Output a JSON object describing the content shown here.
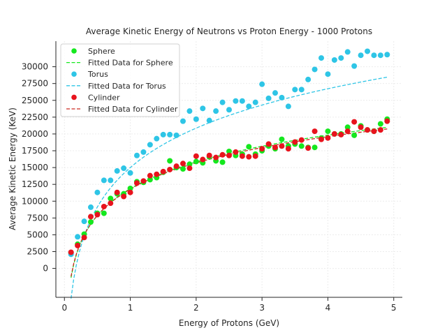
{
  "chart_data": {
    "type": "scatter",
    "title": "Average Kinetic Energy of Neutrons vs Proton Energy - 1000 Protons",
    "xlabel": "Energy of Protons (GeV)",
    "ylabel": "Average Kinetic Energy (KeV)",
    "xlim": [
      -0.13,
      5.13
    ],
    "ylim": [
      -4300,
      33800
    ],
    "x_ticks": [
      0,
      1,
      2,
      3,
      4,
      5
    ],
    "y_ticks": [
      0,
      2500,
      5000,
      7500,
      10000,
      12500,
      15000,
      17500,
      20000,
      22500,
      25000,
      27500,
      30000
    ],
    "grid": true,
    "legend_position": "upper-left",
    "x": [
      0.1,
      0.2,
      0.3,
      0.4,
      0.5,
      0.6,
      0.7,
      0.8,
      0.9,
      1.0,
      1.1,
      1.2,
      1.3,
      1.4,
      1.5,
      1.6,
      1.7,
      1.8,
      1.9,
      2.0,
      2.1,
      2.2,
      2.3,
      2.4,
      2.5,
      2.6,
      2.7,
      2.8,
      2.9,
      3.0,
      3.1,
      3.2,
      3.3,
      3.4,
      3.5,
      3.6,
      3.7,
      3.8,
      3.9,
      4.0,
      4.1,
      4.2,
      4.3,
      4.4,
      4.5,
      4.6,
      4.7,
      4.8,
      4.9
    ],
    "series": [
      {
        "name": "Sphere",
        "kind": "scatter",
        "color": "#14e81e",
        "values": [
          2300,
          3600,
          5100,
          6900,
          8200,
          8200,
          10400,
          11100,
          11100,
          11900,
          12900,
          12800,
          13200,
          13500,
          14300,
          16000,
          15000,
          14800,
          15500,
          15900,
          15700,
          16600,
          16000,
          15800,
          17400,
          16800,
          17000,
          18100,
          17000,
          17500,
          18200,
          17800,
          19200,
          18200,
          18500,
          18200,
          18000,
          18000,
          19400,
          20400,
          20000,
          20000,
          21000,
          19800,
          21200,
          20600,
          20400,
          21500,
          22200
        ]
      },
      {
        "name": "Fitted Data for Sphere",
        "kind": "line",
        "color": "#14e81e",
        "fit": {
          "a": 11856,
          "b": 5747
        }
      },
      {
        "name": "Torus",
        "kind": "scatter",
        "color": "#2ec5e6",
        "values": [
          2100,
          4700,
          7000,
          9100,
          11300,
          13100,
          13100,
          14500,
          14900,
          14200,
          16800,
          17300,
          18400,
          19300,
          19900,
          19900,
          19800,
          21900,
          23400,
          22200,
          23800,
          22000,
          23400,
          24700,
          23600,
          24900,
          24900,
          24100,
          24700,
          27400,
          25300,
          26100,
          25400,
          24100,
          26600,
          26600,
          28100,
          29600,
          31300,
          28900,
          31000,
          31300,
          32200,
          30100,
          31700,
          32300,
          31700,
          31700,
          31800
        ]
      },
      {
        "name": "Fitted Data for Torus",
        "kind": "line",
        "color": "#2ec5e6",
        "fit": {
          "a": 15000,
          "b": 8460
        }
      },
      {
        "name": "Cylinder",
        "kind": "scatter",
        "color": "#e8131d",
        "values": [
          2400,
          3400,
          4600,
          7700,
          8000,
          9200,
          9700,
          11300,
          10700,
          11300,
          12700,
          13000,
          13800,
          14000,
          14400,
          14700,
          15200,
          15600,
          14900,
          16700,
          16200,
          16800,
          16500,
          16900,
          16800,
          17300,
          16700,
          16600,
          16700,
          17800,
          18500,
          18000,
          18200,
          17800,
          18800,
          19100,
          17900,
          20400,
          19200,
          19400,
          20000,
          19900,
          20400,
          21800,
          21000,
          20600,
          20400,
          20600,
          21900
        ]
      },
      {
        "name": "Fitted Data for Cylinder",
        "kind": "line",
        "color": "#cc2a20",
        "fit": {
          "a": 11779,
          "b": 5638
        }
      }
    ]
  }
}
